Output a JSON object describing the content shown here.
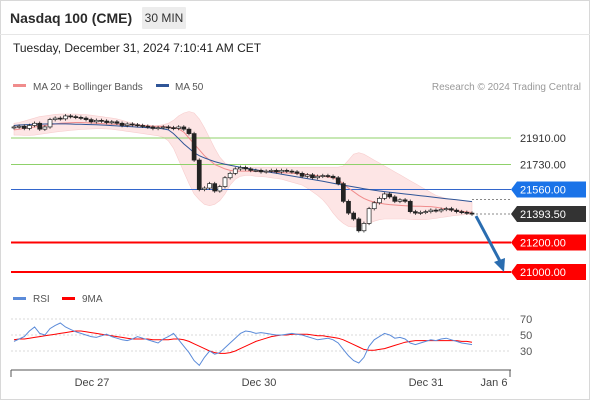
{
  "header": {
    "title": "Nasdaq 100 (CME)",
    "timeframe": "30 MIN",
    "datetime": "Tuesday, December 31, 2024 7:10:41 AM CET"
  },
  "legend": {
    "ma20_label": "MA 20 + Bollinger Bands",
    "ma50_label": "MA 50",
    "credit": "Research © 2024 Trading Central",
    "rsi_label": "RSI",
    "rsi_ma_label": "9MA"
  },
  "colors": {
    "ma20": "#f08c8c",
    "ma50": "#2f5597",
    "bollinger_fill": "#fde3e3",
    "support_line": "#ff0000",
    "resistance_line": "#8fd16a",
    "pivot_line": "#3366cc",
    "pivot_badge": "#1a73e8",
    "price_badge": "#333333",
    "rsi_line": "#5b8bd9",
    "rsi_ma_line": "#ff0000",
    "candle_up": "#ffffff",
    "candle_down": "#222222",
    "forecast_arrow": "#2a6db0"
  },
  "chart_data": {
    "type": "candlestick",
    "title": "Nasdaq 100 (CME)",
    "price_range": [
      20860,
      22160
    ],
    "levels": [
      {
        "value": 21910.0,
        "label": "21910.00",
        "kind": "resistance"
      },
      {
        "value": 21730.0,
        "label": "21730.00",
        "kind": "resistance"
      },
      {
        "value": 21560.0,
        "label": "21560.00",
        "kind": "pivot"
      },
      {
        "value": 21393.5,
        "label": "21393.50",
        "kind": "last_price"
      },
      {
        "value": 21200.0,
        "label": "21200.00",
        "kind": "support"
      },
      {
        "value": 21000.0,
        "label": "21000.00",
        "kind": "support"
      }
    ],
    "x_ticks": [
      "Dec 27",
      "Dec 30",
      "Dec 31",
      "Jan 6"
    ],
    "close": [
      21985,
      21990,
      21975,
      21995,
      22010,
      21970,
      21985,
      22035,
      22045,
      22040,
      22060,
      22055,
      22050,
      22045,
      22035,
      22020,
      22030,
      22025,
      22015,
      22020,
      22010,
      21995,
      22005,
      22000,
      21995,
      21990,
      21985,
      21975,
      21980,
      21985,
      21980,
      21975,
      21985,
      21970,
      21940,
      21760,
      21560,
      21570,
      21600,
      21550,
      21580,
      21640,
      21670,
      21700,
      21710,
      21700,
      21690,
      21690,
      21680,
      21685,
      21690,
      21680,
      21690,
      21685,
      21680,
      21670,
      21650,
      21660,
      21640,
      21650,
      21655,
      21650,
      21640,
      21600,
      21480,
      21400,
      21360,
      21280,
      21330,
      21430,
      21470,
      21500,
      21530,
      21510,
      21480,
      21490,
      21480,
      21410,
      21400,
      21405,
      21410,
      21420,
      21415,
      21425,
      21430,
      21420,
      21410,
      21405,
      21400,
      21393.5
    ],
    "ma20": [
      21965,
      21970,
      21975,
      21980,
      21985,
      21990,
      21995,
      22000,
      22005,
      22010,
      22012,
      22014,
      22015,
      22015,
      22014,
      22012,
      22010,
      22008,
      22006,
      22004,
      22003,
      22001,
      21999,
      21998,
      21996,
      21994,
      21993,
      21991,
      21990,
      21988,
      21985,
      21980,
      21972,
      21950,
      21910,
      21870,
      21830,
      21790,
      21760,
      21730,
      21715,
      21700,
      21690,
      21685,
      21685,
      21685,
      21685,
      21684,
      21683,
      21682,
      21680,
      21678,
      21675,
      21672,
      21670,
      21668,
      21665,
      21662,
      21658,
      21654,
      21650,
      21645,
      21640,
      21625,
      21600,
      21570,
      21545,
      21520,
      21500,
      21485,
      21475,
      21468,
      21462,
      21458,
      21455,
      21452,
      21450,
      21448,
      21447,
      21446,
      21445,
      21444,
      21440,
      21434,
      21428,
      21422,
      21418,
      21412,
      21408,
      21404
    ],
    "bb_upper": [
      22010,
      22015,
      22025,
      22035,
      22045,
      22055,
      22060,
      22065,
      22070,
      22072,
      22073,
      22073,
      22072,
      22070,
      22068,
      22065,
      22060,
      22055,
      22050,
      22045,
      22040,
      22030,
      22020,
      22012,
      22005,
      22000,
      21995,
      21990,
      21995,
      22000,
      22010,
      22030,
      22060,
      22080,
      22090,
      22080,
      22040,
      21980,
      21910,
      21840,
      21780,
      21740,
      21725,
      21715,
      21712,
      21712,
      21712,
      21712,
      21712,
      21712,
      21712,
      21712,
      21712,
      21712,
      21712,
      21712,
      21712,
      21712,
      21712,
      21712,
      21712,
      21712,
      21712,
      21712,
      21720,
      21760,
      21800,
      21810,
      21800,
      21780,
      21760,
      21740,
      21720,
      21700,
      21680,
      21660,
      21640,
      21620,
      21600,
      21580,
      21560,
      21540,
      21520,
      21510,
      21500,
      21495,
      21490,
      21485,
      21480,
      21478
    ],
    "bb_lower": [
      21930,
      21930,
      21928,
      21928,
      21930,
      21935,
      21940,
      21945,
      21950,
      21955,
      21958,
      21962,
      21965,
      21968,
      21970,
      21972,
      21973,
      21973,
      21972,
      21970,
      21965,
      21960,
      21955,
      21950,
      21945,
      21940,
      21935,
      21930,
      21925,
      21915,
      21890,
      21840,
      21760,
      21680,
      21600,
      21530,
      21490,
      21460,
      21450,
      21460,
      21485,
      21530,
      21590,
      21630,
      21650,
      21655,
      21655,
      21650,
      21648,
      21645,
      21640,
      21635,
      21630,
      21620,
      21610,
      21600,
      21590,
      21570,
      21545,
      21520,
      21490,
      21450,
      21400,
      21360,
      21330,
      21310,
      21305,
      21310,
      21320,
      21330,
      21345,
      21355,
      21360,
      21360,
      21360,
      21360,
      21360,
      21358,
      21355,
      21355,
      21356,
      21360,
      21365,
      21370,
      21375,
      21380,
      21385,
      21388,
      21390,
      21392
    ],
    "ma50": [
      21995,
      21998,
      22000,
      22002,
      22003,
      22004,
      22005,
      22006,
      22006,
      22006,
      22006,
      22005,
      22004,
      22003,
      22002,
      22001,
      22000,
      21998,
      21996,
      21994,
      21992,
      21990,
      21988,
      21986,
      21984,
      21982,
      21980,
      21978,
      21976,
      21972,
      21965,
      21940,
      21905,
      21870,
      21840,
      21810,
      21790,
      21775,
      21762,
      21750,
      21740,
      21732,
      21725,
      21718,
      21712,
      21706,
      21700,
      21694,
      21688,
      21682,
      21676,
      21670,
      21664,
      21658,
      21652,
      21646,
      21640,
      21634,
      21628,
      21622,
      21616,
      21610,
      21603,
      21596,
      21590,
      21584,
      21578,
      21572,
      21566,
      21560,
      21555,
      21550,
      21546,
      21542,
      21538,
      21534,
      21530,
      21526,
      21522,
      21518,
      21514,
      21510,
      21506,
      21502,
      21498,
      21494,
      21490,
      21486,
      21482,
      21478
    ],
    "rsi": {
      "range": [
        0,
        100
      ],
      "ticks": [
        30,
        50,
        70
      ],
      "rsi": [
        42,
        45,
        48,
        55,
        60,
        52,
        50,
        58,
        62,
        65,
        60,
        57,
        54,
        52,
        50,
        48,
        47,
        49,
        51,
        48,
        46,
        44,
        43,
        45,
        48,
        46,
        44,
        42,
        40,
        45,
        48,
        52,
        44,
        36,
        28,
        18,
        12,
        22,
        30,
        26,
        28,
        34,
        40,
        46,
        52,
        55,
        54,
        52,
        53,
        52,
        51,
        50,
        50,
        51,
        52,
        51,
        50,
        48,
        46,
        44,
        45,
        46,
        44,
        40,
        32,
        24,
        18,
        15,
        22,
        36,
        44,
        48,
        52,
        50,
        46,
        47,
        45,
        40,
        38,
        40,
        42,
        44,
        43,
        45,
        46,
        44,
        42,
        40,
        39,
        38
      ],
      "ma": [
        44,
        45,
        45,
        46,
        47,
        48,
        49,
        50,
        51,
        52,
        53,
        54,
        55,
        55,
        54,
        53,
        52,
        51,
        50,
        49,
        48,
        47,
        46,
        45,
        45,
        45,
        45,
        44,
        44,
        44,
        44,
        45,
        45,
        44,
        42,
        39,
        36,
        33,
        30,
        28,
        27,
        27,
        28,
        30,
        33,
        36,
        39,
        42,
        44,
        46,
        48,
        49,
        50,
        50,
        51,
        51,
        51,
        51,
        50,
        49,
        49,
        48,
        47,
        46,
        44,
        41,
        38,
        35,
        32,
        31,
        31,
        32,
        33,
        35,
        37,
        39,
        41,
        42,
        43,
        43,
        43,
        43,
        43,
        43,
        43,
        43,
        43,
        42,
        42,
        41
      ]
    }
  }
}
